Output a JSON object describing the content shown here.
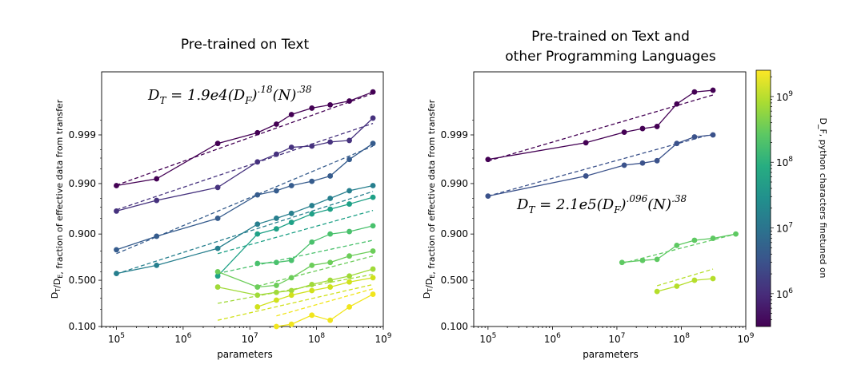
{
  "chart_data": [
    {
      "type": "line",
      "title": "Pre-trained on Text",
      "xlabel": "parameters",
      "ylabel": "D_T/D_E, fraction of effective data from transfer",
      "x_scale": "log",
      "xlim": [
        60000,
        1000000000
      ],
      "x_ticks": [
        "10^5",
        "10^6",
        "10^7",
        "10^8",
        "10^9"
      ],
      "y_scale": "logit",
      "y_ticks": [
        "0.100",
        "0.500",
        "0.900",
        "0.990",
        "0.999"
      ],
      "annotation": "D_T = 1.9e4(D_F)^.18(N)^.38",
      "series": [
        {
          "color": "#440154",
          "x": [
            100000,
            400000,
            3300000,
            13000000,
            25000000,
            42000000,
            85000000,
            160000000,
            310000000,
            700000000
          ],
          "y": [
            0.989,
            0.992,
            0.9985,
            0.9991,
            0.9994,
            0.99962,
            0.99972,
            0.99976,
            0.9998,
            0.99987
          ],
          "fit_start": [
            100000,
            0.9892
          ],
          "fit_end": [
            700000000,
            0.99986
          ]
        },
        {
          "color": "#46327e",
          "x": [
            100000,
            400000,
            3300000,
            13000000,
            25000000,
            42000000,
            85000000,
            160000000,
            310000000,
            700000000
          ],
          "y": [
            0.964,
            0.978,
            0.988,
            0.9964,
            0.9975,
            0.9982,
            0.9983,
            0.9986,
            0.9987,
            0.99955
          ],
          "fit_start": [
            100000,
            0.966
          ],
          "fit_end": [
            700000000,
            0.99942
          ]
        },
        {
          "color": "#365c8d",
          "x": [
            100000,
            400000,
            3300000,
            13000000,
            25000000,
            42000000,
            85000000,
            160000000,
            310000000,
            700000000
          ],
          "y": [
            0.81,
            0.89,
            0.95,
            0.983,
            0.986,
            0.989,
            0.991,
            0.993,
            0.9968,
            0.9985
          ],
          "fit_start": [
            100000,
            0.78
          ],
          "fit_end": [
            700000000,
            0.9983
          ]
        },
        {
          "color": "#277f8e",
          "x": [
            100000,
            400000,
            3300000,
            13000000,
            25000000,
            42000000,
            85000000,
            160000000,
            310000000,
            700000000
          ],
          "y": [
            0.58,
            0.67,
            0.82,
            0.935,
            0.95,
            0.96,
            0.972,
            0.98,
            0.986,
            0.989
          ],
          "fit_start": [
            100000,
            0.575
          ],
          "fit_end": [
            700000000,
            0.9855
          ]
        },
        {
          "color": "#1fa187",
          "x": [
            3300000,
            13000000,
            25000000,
            42000000,
            85000000,
            160000000,
            310000000,
            700000000
          ],
          "y": [
            0.55,
            0.9,
            0.92,
            0.94,
            0.959,
            0.967,
            0.974,
            0.981
          ],
          "fit_start": [
            3300000,
            0.78
          ],
          "fit_end": [
            700000000,
            0.965
          ]
        },
        {
          "color": "#4ac16d",
          "x": [
            13000000,
            25000000,
            42000000,
            85000000,
            160000000,
            310000000,
            700000000
          ],
          "y": [
            0.69,
            0.7,
            0.72,
            0.86,
            0.9,
            0.91,
            0.93
          ],
          "fit_start": [
            3300000,
            0.58
          ],
          "fit_end": [
            700000000,
            0.87
          ]
        },
        {
          "color": "#6ccd5a",
          "x": [
            3300000,
            13000000,
            25000000,
            42000000,
            85000000,
            160000000,
            310000000,
            700000000
          ],
          "y": [
            0.6,
            0.42,
            0.44,
            0.53,
            0.67,
            0.7,
            0.76,
            0.8
          ],
          "fit_start": [
            13000000,
            0.43
          ],
          "fit_end": [
            700000000,
            0.76
          ]
        },
        {
          "color": "#a0da39",
          "x": [
            3300000,
            13000000,
            25000000,
            42000000,
            85000000,
            160000000,
            310000000,
            700000000
          ],
          "y": [
            0.42,
            0.33,
            0.36,
            0.38,
            0.45,
            0.5,
            0.55,
            0.63
          ],
          "fit_start": [
            3300000,
            0.25
          ],
          "fit_end": [
            700000000,
            0.57
          ]
        },
        {
          "color": "#d0e11c",
          "x": [
            13000000,
            25000000,
            42000000,
            85000000,
            160000000,
            310000000,
            700000000
          ],
          "y": [
            0.22,
            0.28,
            0.33,
            0.38,
            0.42,
            0.48,
            0.53
          ],
          "fit_start": [
            3300000,
            0.13
          ],
          "fit_end": [
            700000000,
            0.45
          ]
        },
        {
          "color": "#f1e51d",
          "x": [
            25000000,
            42000000,
            85000000,
            160000000,
            310000000,
            700000000
          ],
          "y": [
            0.1,
            0.11,
            0.16,
            0.13,
            0.22,
            0.34
          ],
          "fit_start": [
            25000000,
            0.155
          ],
          "fit_end": [
            700000000,
            0.4
          ]
        }
      ]
    },
    {
      "type": "line",
      "title": "Pre-trained on Text and other Programming Languages",
      "title_lines": [
        "Pre-trained on Text and",
        "other Programming Languages"
      ],
      "xlabel": "parameters",
      "ylabel": "D_T/D_E, fraction of effective data from transfer",
      "x_scale": "log",
      "xlim": [
        60000,
        1000000000
      ],
      "x_ticks": [
        "10^5",
        "10^6",
        "10^7",
        "10^8",
        "10^9"
      ],
      "y_scale": "logit",
      "y_ticks": [
        "0.100",
        "0.500",
        "0.900",
        "0.990",
        "0.999"
      ],
      "annotation": "D_T = 2.1e5(D_F)^.096(N)^.38",
      "series": [
        {
          "color": "#440154",
          "x": [
            100000,
            3300000,
            13000000,
            25000000,
            42000000,
            85000000,
            160000000,
            310000000
          ],
          "y": [
            0.9968,
            0.99855,
            0.99912,
            0.99926,
            0.99933,
            0.99977,
            0.99987,
            0.99988
          ],
          "fit_start": [
            100000,
            0.99655
          ],
          "fit_end": [
            310000000,
            0.99985
          ]
        },
        {
          "color": "#3b528b",
          "x": [
            100000,
            3300000,
            13000000,
            25000000,
            42000000,
            85000000,
            160000000,
            310000000
          ],
          "y": [
            0.982,
            0.993,
            0.9958,
            0.9962,
            0.9966,
            0.9985,
            0.9989,
            0.999
          ],
          "fit_start": [
            100000,
            0.982
          ],
          "fit_end": [
            310000000,
            0.99905
          ]
        },
        {
          "color": "#5ec962",
          "x": [
            12000000,
            25000000,
            42000000,
            85000000,
            160000000,
            310000000,
            700000000
          ],
          "y": [
            0.7,
            0.72,
            0.73,
            0.84,
            0.87,
            0.88,
            0.9
          ],
          "fit_start": [
            12000000,
            0.69
          ],
          "fit_end": [
            700000000,
            0.9
          ]
        },
        {
          "color": "#b5de2b",
          "x": [
            42000000,
            85000000,
            160000000,
            310000000
          ],
          "y": [
            0.37,
            0.43,
            0.5,
            0.52
          ],
          "fit_start": [
            42000000,
            0.435
          ],
          "fit_end": [
            310000000,
            0.63
          ]
        }
      ]
    }
  ],
  "colorbar": {
    "label": "D_F, python characters finetuned on",
    "tick_labels": [
      "10^6",
      "10^7",
      "10^8",
      "10^9"
    ],
    "range_log10": [
      5.5,
      9.4
    ],
    "colormap": "viridis"
  }
}
